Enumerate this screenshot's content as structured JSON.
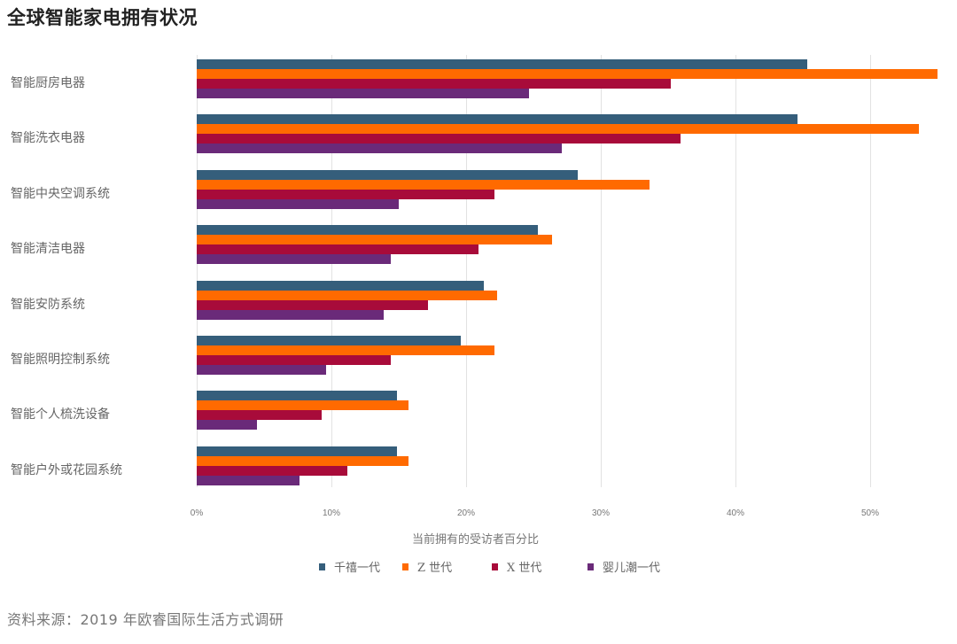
{
  "title": "全球智能家电拥有状况",
  "source": "资料来源：2019 年欧睿国际生活方式调研",
  "colors": {
    "millennials": "#355e7b",
    "gen_z": "#ff6a00",
    "gen_x": "#a80b3a",
    "boomers": "#6a2a79"
  },
  "chart_data": {
    "type": "bar",
    "orientation": "horizontal",
    "title": "全球智能家电拥有状况",
    "xlabel": "当前拥有的受访者百分比",
    "ylabel": "",
    "xlim": [
      0,
      55
    ],
    "x_ticks": [
      "0%",
      "10%",
      "20%",
      "30%",
      "40%",
      "50%"
    ],
    "grid": true,
    "legend_position": "bottom",
    "categories": [
      "智能厨房电器",
      "智能洗衣电器",
      "智能中央空调系统",
      "智能清洁电器",
      "智能安防系统",
      "智能照明控制系统",
      "智能个人梳洗设备",
      "智能户外或花园系统"
    ],
    "series": [
      {
        "name": "千禧一代",
        "color": "#355e7b",
        "values": [
          45.3,
          44.6,
          28.3,
          25.3,
          21.3,
          19.6,
          14.9,
          14.9
        ]
      },
      {
        "name": "Z 世代",
        "color": "#ff6a00",
        "values": [
          55.0,
          53.6,
          33.6,
          26.4,
          22.3,
          22.1,
          15.7,
          15.7
        ]
      },
      {
        "name": "X 世代",
        "color": "#a80b3a",
        "values": [
          35.2,
          35.9,
          22.1,
          20.9,
          17.2,
          14.4,
          9.3,
          11.2
        ]
      },
      {
        "name": "婴儿潮一代",
        "color": "#6a2a79",
        "values": [
          24.7,
          27.1,
          15.0,
          14.4,
          13.9,
          9.6,
          4.5,
          7.6
        ]
      }
    ]
  }
}
